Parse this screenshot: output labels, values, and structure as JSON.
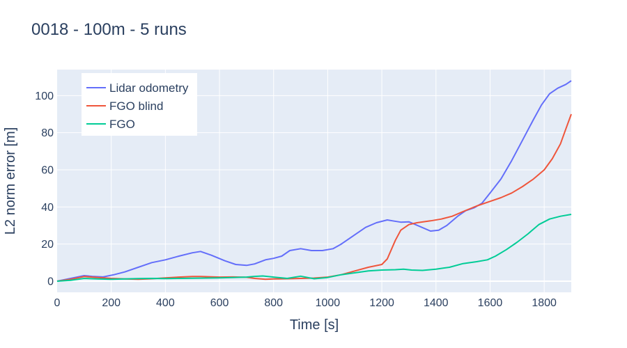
{
  "chart_data": {
    "type": "line",
    "title": "0018 - 100m - 5 runs",
    "xlabel": "Time [s]",
    "ylabel": "L2 norm error [m]",
    "xlim": [
      0,
      1900
    ],
    "ylim": [
      -6,
      114
    ],
    "xticks": [
      0,
      200,
      400,
      600,
      800,
      1000,
      1200,
      1400,
      1600,
      1800
    ],
    "yticks": [
      0,
      20,
      40,
      60,
      80,
      100
    ],
    "grid": true,
    "legend_position": "top-left",
    "plot_bg": "#e5ecf6",
    "series": [
      {
        "name": "Lidar odometry",
        "color": "#636efa",
        "x": [
          0,
          50,
          100,
          130,
          170,
          210,
          250,
          300,
          350,
          400,
          450,
          500,
          530,
          570,
          620,
          660,
          700,
          730,
          770,
          800,
          830,
          860,
          900,
          940,
          980,
          1020,
          1050,
          1100,
          1140,
          1180,
          1220,
          1240,
          1270,
          1300,
          1340,
          1380,
          1410,
          1440,
          1480,
          1510,
          1540,
          1570,
          1600,
          1640,
          1680,
          1720,
          1760,
          1790,
          1820,
          1850,
          1880,
          1900
        ],
        "y": [
          0,
          1.5,
          3,
          2.6,
          2.3,
          3.5,
          5,
          7.5,
          10,
          11.5,
          13.5,
          15.3,
          16,
          14,
          11,
          9,
          8.5,
          9.3,
          11.5,
          12.3,
          13.5,
          16.5,
          17.5,
          16.5,
          16.5,
          17.5,
          20,
          25,
          29,
          31.5,
          33,
          32.5,
          31.8,
          32,
          29.5,
          27,
          27.5,
          30,
          35,
          38,
          39.5,
          42,
          47.5,
          55,
          65,
          76,
          87,
          95,
          101,
          104,
          106,
          108
        ]
      },
      {
        "name": "FGO blind",
        "color": "#ef553b",
        "x": [
          0,
          50,
          100,
          150,
          200,
          250,
          300,
          350,
          400,
          450,
          500,
          530,
          600,
          650,
          700,
          730,
          770,
          800,
          850,
          900,
          950,
          1000,
          1050,
          1100,
          1150,
          1200,
          1220,
          1250,
          1270,
          1300,
          1330,
          1380,
          1420,
          1460,
          1500,
          1550,
          1600,
          1640,
          1680,
          1720,
          1760,
          1800,
          1830,
          1860,
          1880,
          1900
        ],
        "y": [
          0,
          1,
          2.5,
          2,
          1.5,
          1.2,
          1,
          1.3,
          1.8,
          2.2,
          2.5,
          2.5,
          2.2,
          2.3,
          2.1,
          1.5,
          1,
          1.2,
          1.3,
          1.5,
          1.7,
          2.2,
          3.5,
          5.5,
          7.5,
          9,
          12,
          22,
          27.5,
          30.5,
          31.5,
          32.5,
          33.5,
          35,
          37.5,
          40.5,
          43,
          45,
          47.5,
          51,
          55,
          60,
          66,
          74,
          82,
          90
        ]
      },
      {
        "name": "FGO",
        "color": "#00cc96",
        "x": [
          0,
          50,
          100,
          150,
          200,
          250,
          300,
          350,
          400,
          450,
          500,
          550,
          600,
          650,
          700,
          730,
          760,
          800,
          850,
          900,
          950,
          1000,
          1050,
          1100,
          1150,
          1200,
          1250,
          1280,
          1310,
          1350,
          1400,
          1450,
          1500,
          1550,
          1590,
          1620,
          1660,
          1700,
          1740,
          1780,
          1820,
          1860,
          1900
        ],
        "y": [
          0,
          0.5,
          1.5,
          1.2,
          1,
          1.2,
          1.4,
          1.5,
          1.4,
          1.5,
          1.6,
          1.7,
          1.8,
          2,
          2.2,
          2.6,
          2.8,
          2.2,
          1.5,
          2.7,
          1.3,
          2,
          3.5,
          4.5,
          5.5,
          6,
          6.2,
          6.5,
          6,
          5.8,
          6.5,
          7.5,
          9.5,
          10.5,
          11.5,
          13.5,
          17,
          21,
          25.5,
          30.5,
          33.5,
          35,
          36
        ]
      }
    ]
  }
}
